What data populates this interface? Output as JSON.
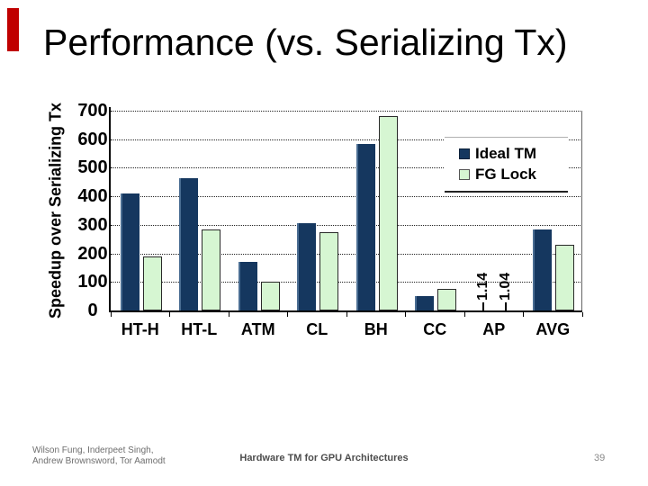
{
  "slide": {
    "title": "Performance (vs. Serializing Tx)",
    "accent_color": "#c00000",
    "footer": {
      "authors_line1": "Wilson Fung, Inderpeet Singh,",
      "authors_line2": "Andrew Brownsword, Tor Aamodt",
      "center_title": "Hardware TM for GPU Architectures",
      "page_number": "39"
    }
  },
  "chart_data": {
    "type": "bar",
    "title": "",
    "categories": [
      "HT-H",
      "HT-L",
      "ATM",
      "CL",
      "BH",
      "CC",
      "AP",
      "AVG"
    ],
    "series": [
      {
        "name": "Ideal TM",
        "color": "#15375f",
        "values": [
          410,
          465,
          170,
          305,
          585,
          50,
          1.14,
          285
        ]
      },
      {
        "name": "FG Lock",
        "color": "#d6f6d2",
        "values": [
          190,
          285,
          100,
          275,
          680,
          75,
          1.04,
          230
        ]
      }
    ],
    "ylabel": "Speedup over Serializing Tx",
    "xlabel": "",
    "ylim": [
      0,
      700
    ],
    "ytick_interval": 100,
    "grid": "dotted-horizontal",
    "legend_position": "upper-right",
    "annotations": [
      {
        "category": "AP",
        "series_labels": [
          "1.14",
          "1.04"
        ],
        "rotation": 90
      }
    ]
  }
}
